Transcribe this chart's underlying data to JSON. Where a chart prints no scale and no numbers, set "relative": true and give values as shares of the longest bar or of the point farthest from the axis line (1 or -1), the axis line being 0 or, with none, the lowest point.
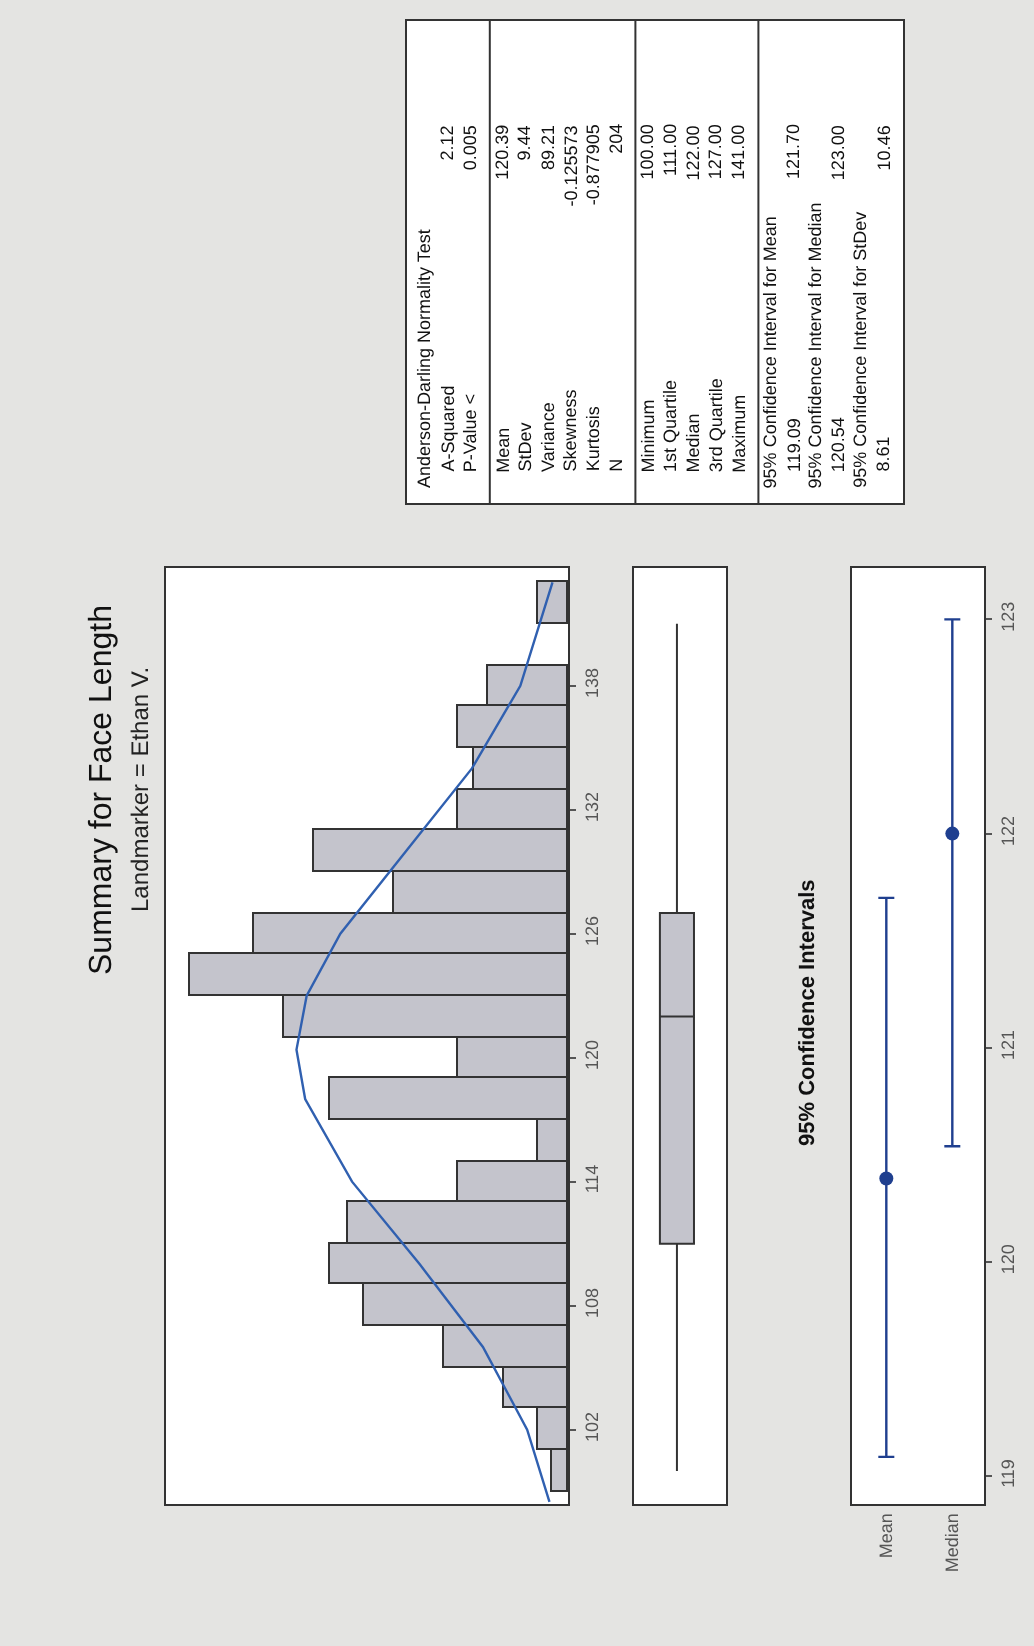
{
  "chart_data": [
    {
      "type": "bar",
      "title": "Summary for Face Length",
      "subtitle": "Landmarker = Ethan V.",
      "orientation": "horizontal",
      "relative": true,
      "x": [
        100,
        102,
        104,
        106,
        108,
        110,
        112,
        114,
        116,
        118,
        120,
        122,
        124,
        126,
        128,
        130,
        132,
        134,
        136,
        138,
        140,
        142
      ],
      "values": [
        0.04,
        0.08,
        0.17,
        0.33,
        0.54,
        0.63,
        0.58,
        0.29,
        0.08,
        0.63,
        0.29,
        0.75,
        1,
        0.83,
        0.46,
        0.67,
        0.29,
        0.25,
        0.29,
        0.21,
        0,
        0.08
      ],
      "color": "#c4c4cc",
      "ylim": [
        98.4,
        143.7
      ],
      "yticks": [
        102,
        108,
        114,
        120,
        126,
        132,
        138
      ],
      "series": [
        {
          "type": "line",
          "color": "#3060b0",
          "x": [
            98.5,
            102,
            106,
            110,
            114,
            118,
            120.39,
            123,
            126,
            130,
            134,
            138,
            143
          ],
          "values": [
            0.049,
            0.108,
            0.225,
            0.392,
            0.571,
            0.695,
            0.718,
            0.691,
            0.602,
            0.428,
            0.254,
            0.126,
            0.041
          ]
        }
      ]
    },
    {
      "type": "box",
      "categories": [
        null
      ],
      "color": "#c4c4cc",
      "ylim": [
        98.4,
        143.7
      ],
      "yticks": [
        102,
        108,
        114,
        120,
        126,
        132,
        138
      ],
      "tick_labels": false,
      "boxes": [
        {
          "low": 100,
          "q1": 111,
          "median": 122,
          "q3": 127,
          "high": 141
        }
      ]
    },
    {
      "type": "scatter",
      "title": "95% Confidence Intervals",
      "categories": [
        "Mean",
        "Median"
      ],
      "values": [
        120.39,
        122
      ],
      "errors": [
        [
          119.09,
          121.7
        ],
        [
          120.54,
          123
        ]
      ],
      "color": "#1f3f8f",
      "marker": "circle",
      "ylim": [
        118.87,
        123.24
      ],
      "yticks": [
        119,
        120,
        121,
        122,
        123
      ]
    },
    {
      "type": "other",
      "categories": [
        "Anderson-Darling Normality Test",
        "A-Squared",
        "P-Value <",
        null,
        "Mean",
        "StDev",
        "Variance",
        "Skewness",
        "Kurtosis",
        "N",
        null,
        "Minimum",
        "1st Quartile",
        "Median",
        "3rd Quartile",
        "Maximum",
        null,
        "95% Confidence Interval for Mean",
        "119.09",
        "95% Confidence Interval for Median",
        "120.54",
        "95% Confidence Interval for StDev",
        "8.61"
      ],
      "value_labels": [
        null,
        "2.12",
        "0.005",
        null,
        "120.39",
        "9.44",
        "89.21",
        "-0.125573",
        "-0.877905",
        "204",
        null,
        "100.00",
        "111.00",
        "122.00",
        "127.00",
        "141.00",
        null,
        null,
        "121.70",
        null,
        "123.00",
        null,
        "10.46"
      ]
    }
  ]
}
